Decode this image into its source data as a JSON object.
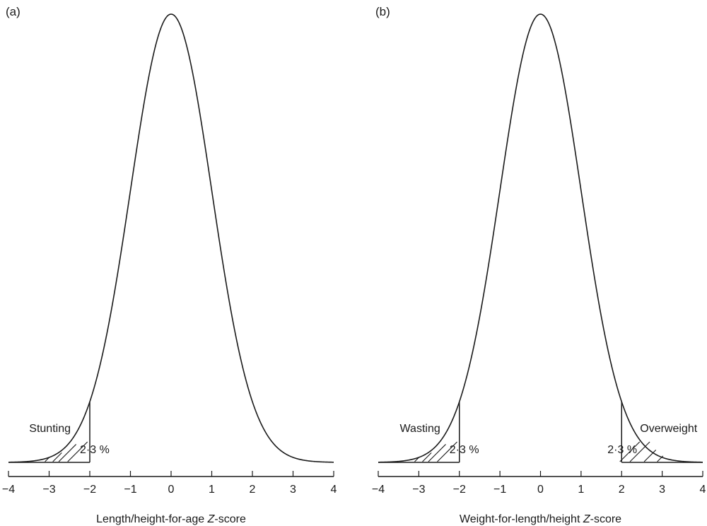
{
  "chart_data": [
    {
      "type": "area",
      "panel_label": "(a)",
      "distribution": "standard normal",
      "xlabel_prefix": "Length/height-for-age ",
      "xlabel_italic": "Z",
      "xlabel_suffix": "-score",
      "xlim": [
        -4,
        4
      ],
      "xticks": [
        -4,
        -3,
        -2,
        -1,
        0,
        1,
        2,
        3,
        4
      ],
      "xtick_labels": [
        "−4",
        "−3",
        "−2",
        "−1",
        "0",
        "1",
        "2",
        "3",
        "4"
      ],
      "shaded_regions": [
        {
          "from": -4,
          "to": -2,
          "label": "Stunting",
          "percent_label": "2·3 %",
          "side": "left"
        }
      ]
    },
    {
      "type": "area",
      "panel_label": "(b)",
      "distribution": "standard normal",
      "xlabel_prefix": "Weight-for-length/height ",
      "xlabel_italic": "Z",
      "xlabel_suffix": "-score",
      "xlim": [
        -4,
        4
      ],
      "xticks": [
        -4,
        -3,
        -2,
        -1,
        0,
        1,
        2,
        3,
        4
      ],
      "xtick_labels": [
        "−4",
        "−3",
        "−2",
        "−1",
        "0",
        "1",
        "2",
        "3",
        "4"
      ],
      "shaded_regions": [
        {
          "from": -4,
          "to": -2,
          "label": "Wasting",
          "percent_label": "2·3 %",
          "side": "left"
        },
        {
          "from": 2,
          "to": 4,
          "label": "Overweight",
          "percent_label": "2·3 %",
          "side": "right"
        }
      ]
    }
  ]
}
